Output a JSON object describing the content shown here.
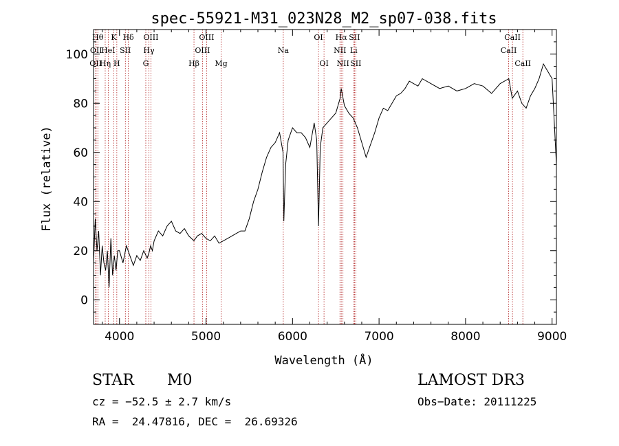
{
  "chart_data": {
    "type": "line",
    "title": "spec-55921-M31_023N28_M2_sp07-038.fits",
    "xlabel": "Wavelength (Å)",
    "ylabel": "Flux (relative)",
    "xlim": [
      3700,
      9050
    ],
    "ylim": [
      -10,
      110
    ],
    "xticks": [
      4000,
      5000,
      6000,
      7000,
      8000,
      9000
    ],
    "yticks": [
      0,
      20,
      40,
      60,
      80,
      100
    ],
    "grid": false,
    "line_color": "#000000",
    "marker_color": "#b22222",
    "series": [
      {
        "x": [
          3700,
          3720,
          3740,
          3760,
          3780,
          3800,
          3820,
          3840,
          3860,
          3880,
          3900,
          3920,
          3940,
          3960,
          3980,
          4000,
          4040,
          4080,
          4120,
          4160,
          4200,
          4240,
          4280,
          4320,
          4340,
          4360,
          4380,
          4400,
          4450,
          4500,
          4550,
          4600,
          4650,
          4700,
          4750,
          4800,
          4860,
          4900,
          4950,
          5000,
          5050,
          5100,
          5150,
          5200,
          5250,
          5300,
          5350,
          5400,
          5450,
          5500,
          5550,
          5600,
          5650,
          5700,
          5750,
          5800,
          5850,
          5890,
          5900,
          5920,
          5950,
          6000,
          6050,
          6100,
          6150,
          6200,
          6250,
          6280,
          6300,
          6320,
          6350,
          6400,
          6450,
          6500,
          6550,
          6563,
          6600,
          6650,
          6700,
          6750,
          6800,
          6850,
          6900,
          6950,
          7000,
          7050,
          7100,
          7150,
          7200,
          7250,
          7300,
          7350,
          7400,
          7450,
          7500,
          7600,
          7700,
          7800,
          7900,
          8000,
          8100,
          8200,
          8300,
          8400,
          8500,
          8540,
          8600,
          8650,
          8700,
          8750,
          8800,
          8850,
          8900,
          8950,
          9000,
          9050
        ],
        "y": [
          15,
          33,
          20,
          28,
          10,
          22,
          15,
          12,
          20,
          5,
          25,
          10,
          18,
          12,
          20,
          20,
          15,
          22,
          18,
          14,
          18,
          16,
          20,
          17,
          19,
          22,
          20,
          24,
          28,
          26,
          30,
          32,
          28,
          27,
          29,
          26,
          24,
          26,
          27,
          25,
          24,
          26,
          23,
          24,
          25,
          26,
          27,
          28,
          28,
          33,
          40,
          45,
          52,
          58,
          62,
          64,
          68,
          60,
          32,
          55,
          65,
          70,
          68,
          68,
          66,
          62,
          72,
          65,
          30,
          62,
          70,
          72,
          74,
          76,
          82,
          86,
          79,
          76,
          74,
          70,
          64,
          58,
          63,
          68,
          74,
          78,
          77,
          80,
          83,
          84,
          86,
          89,
          88,
          87,
          90,
          88,
          86,
          87,
          85,
          86,
          88,
          87,
          84,
          88,
          90,
          82,
          85,
          80,
          78,
          83,
          86,
          90,
          96,
          93,
          90,
          55
        ]
      }
    ],
    "lines": [
      {
        "x": 3750,
        "label": "Hθ",
        "row": 0
      },
      {
        "x": 3730,
        "label": "OII",
        "row": 1
      },
      {
        "x": 3725,
        "label": "OII",
        "row": 2
      },
      {
        "x": 3835,
        "label": "Hη",
        "row": 2
      },
      {
        "x": 3870,
        "label": "HeI",
        "row": 1
      },
      {
        "x": 3934,
        "label": "K",
        "row": 0
      },
      {
        "x": 3969,
        "label": "H",
        "row": 2
      },
      {
        "x": 4068,
        "label": "SII",
        "row": 1
      },
      {
        "x": 4102,
        "label": "Hδ",
        "row": 0
      },
      {
        "x": 4340,
        "label": "Hγ",
        "row": 1
      },
      {
        "x": 4304,
        "label": "G",
        "row": 2
      },
      {
        "x": 4363,
        "label": "OIII",
        "row": 0
      },
      {
        "x": 4861,
        "label": "Hβ",
        "row": 2
      },
      {
        "x": 4959,
        "label": "OIII",
        "row": 1
      },
      {
        "x": 5007,
        "label": "OIII",
        "row": 0
      },
      {
        "x": 5175,
        "label": "Mg",
        "row": 2
      },
      {
        "x": 5893,
        "label": "Na",
        "row": 1
      },
      {
        "x": 6300,
        "label": "OI",
        "row": 0
      },
      {
        "x": 6364,
        "label": "OI",
        "row": 2
      },
      {
        "x": 6548,
        "label": "NII",
        "row": 1
      },
      {
        "x": 6563,
        "label": "Hα",
        "row": 0
      },
      {
        "x": 6583,
        "label": "NII",
        "row": 2
      },
      {
        "x": 6707,
        "label": "Li",
        "row": 1
      },
      {
        "x": 6716,
        "label": "SII",
        "row": 0
      },
      {
        "x": 6731,
        "label": "SII",
        "row": 2
      },
      {
        "x": 8498,
        "label": "CaII",
        "row": 1
      },
      {
        "x": 8542,
        "label": "CaII",
        "row": 0
      },
      {
        "x": 8662,
        "label": "CaII",
        "row": 2
      }
    ]
  },
  "info": {
    "class": "STAR",
    "subclass": "M0",
    "survey": "LAMOST DR3",
    "cz": "cz = −52.5 ± 2.7 km/s",
    "obs_date": "Obs−Date: 20111225",
    "coords": "RA =  24.47816, DEC =  26.69326"
  }
}
